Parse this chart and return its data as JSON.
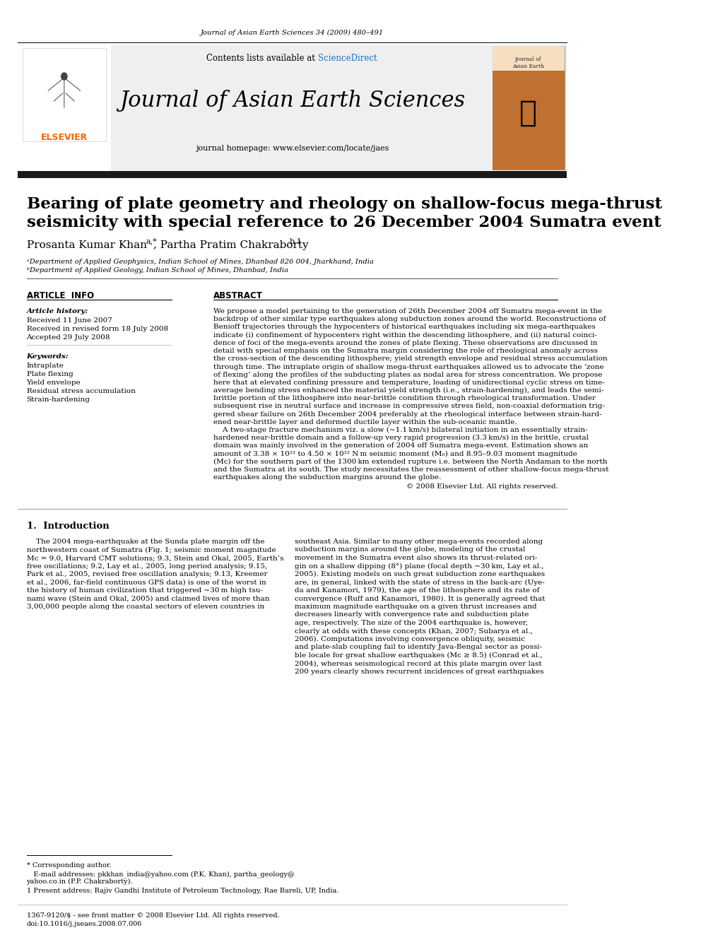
{
  "journal_ref": "Journal of Asian Earth Sciences 34 (2009) 480–491",
  "sciencedirect_color": "#1a73c1",
  "journal_title": "Journal of Asian Earth Sciences",
  "homepage_line": "journal homepage: www.elsevier.com/locate/jaes",
  "header_banner_bg": "#efefef",
  "black_bar_color": "#1a1a1a",
  "article_title_line1": "Bearing of plate geometry and rheology on shallow-focus mega-thrust",
  "article_title_line2": "seismicity with special reference to 26 December 2004 Sumatra event",
  "affil_a": "ᵃDepartment of Applied Geophysics, Indian School of Mines, Dhanbad 826 004, Jharkhand, India",
  "affil_b": "ᵇDepartment of Applied Geology, Indian School of Mines, Dhanbad, India",
  "article_history_label": "Article history:",
  "received1": "Received 11 June 2007",
  "received2": "Received in revised form 18 July 2008",
  "accepted": "Accepted 29 July 2008",
  "keywords_label": "Keywords:",
  "keywords": [
    "Intraplate",
    "Plate flexing",
    "Yield envelope",
    "Residual stress accumulation",
    "Strain-hardening"
  ],
  "abstract_lines": [
    "We propose a model pertaining to the generation of 26th December 2004 off Sumatra mega-event in the",
    "backdrop of other similar type earthquakes along subduction zones around the world. Reconstructions of",
    "Benioff trajectories through the hypocenters of historical earthquakes including six mega-earthquakes",
    "indicate (i) confinement of hypocenters right within the descending lithosphere, and (ii) natural coinci-",
    "dence of foci of the mega-events around the zones of plate flexing. These observations are discussed in",
    "detail with special emphasis on the Sumatra margin considering the role of rheological anomaly across",
    "the cross-section of the descending lithosphere; yield strength envelope and residual stress accumulation",
    "through time. The intraplate origin of shallow mega-thrust earthquakes allowed us to advocate the ‘zone",
    "of flexing’ along the profiles of the subducting plates as nodal area for stress concentration. We propose",
    "here that at elevated confining pressure and temperature, loading of unidirectional cyclic stress on time-",
    "average bending stress enhanced the material yield strength (i.e., strain-hardening), and leads the semi-",
    "brittle portion of the lithosphere into near-brittle condition through rheological transformation. Under",
    "subsequent rise in neutral surface and increase in compressive stress field, non-coaxial deformation trig-",
    "gered shear failure on 26th December 2004 preferably at the rheological interface between strain-hard-",
    "ened near-brittle layer and deformed ductile layer within the sub-oceanic mantle.",
    "    A two-stage fracture mechanism viz. a slow (~1.1 km/s) bilateral initiation in an essentially strain-",
    "hardened near-brittle domain and a follow-up very rapid progression (3.3 km/s) in the brittle, crustal",
    "domain was mainly involved in the generation of 2004 off Sumatra mega-event. Estimation shows an",
    "amount of 3.38 × 10²² to 4.50 × 10²² N m seismic moment (M₀) and 8.95–9.03 moment magnitude",
    "(Mᴄ) for the southern part of the 1300 km extended rupture i.e. between the North Andaman to the north",
    "and the Sumatra at its south. The study necessitates the reassessment of other shallow-focus mega-thrust",
    "earthquakes along the subduction margins around the globe."
  ],
  "copyright": "© 2008 Elsevier Ltd. All rights reserved.",
  "intro_heading": "1.  Introduction",
  "intro_left_lines": [
    "    The 2004 mega-earthquake at the Sunda plate margin off the",
    "northwestern coast of Sumatra (Fig. 1; seismic moment magnitude",
    "Mᴄ = 9.0, Harvard CMT solutions; 9.3, Stein and Okal, 2005, Earth’s",
    "free oscillations; 9.2, Lay et al., 2005, long period analysis; 9.15,",
    "Park et al., 2005, revised free oscillation analysis; 9.13, Kreemer",
    "et al., 2006, far-field continuous GPS data) is one of the worst in",
    "the history of human civilization that triggered ~30 m high tsu-",
    "nami wave (Stein and Okal, 2005) and claimed lives of more than",
    "3,00,000 people along the coastal sectors of eleven countries in"
  ],
  "intro_right_lines": [
    "southeast Asia. Similar to many other mega-events recorded along",
    "subduction margins around the globe, modeling of the crustal",
    "movement in the Sumatra event also shows its thrust-related ori-",
    "gin on a shallow dipping (8°) plane (focal depth ~30 km, Lay et al.,",
    "2005). Existing models on such great subduction zone earthquakes",
    "are, in general, linked with the state of stress in the back-arc (Uye-",
    "da and Kanamori, 1979), the age of the lithosphere and its rate of",
    "convergence (Ruff and Kanamori, 1980). It is generally agreed that",
    "maximum magnitude earthquake on a given thrust increases and",
    "decreases linearly with convergence rate and subduction plate",
    "age, respectively. The size of the 2004 earthquake is, however,",
    "clearly at odds with these concepts (Khan, 2007; Subarya et al.,",
    "2006). Computations involving convergence obliquity, seismic",
    "and plate-slab coupling fail to identify Java-Bengal sector as possi-",
    "ble locale for great shallow earthquakes (Mᴄ ≥ 8.5) (Conrad et al.,",
    "2004), whereas seismological record at this plate margin over last",
    "200 years clearly shows recurrent incidences of great earthquakes"
  ],
  "footnote_star": "* Corresponding author.",
  "footnote_email_line1": "   E-mail addresses: pkkhan_india@yahoo.com (P.K. Khan), partha_geology@",
  "footnote_email_line2": "yahoo.co.in (P.P. Chakraborty).",
  "footnote_num": "1 Present address: Rajiv Gandhi Institute of Petroleum Technology, Rae Bareli, UP, India.",
  "footer_left": "1367-9120/$ - see front matter © 2008 Elsevier Ltd. All rights reserved.",
  "footer_doi": "doi:10.1016/j.jseaes.2008.07.006",
  "bg_color": "#ffffff"
}
